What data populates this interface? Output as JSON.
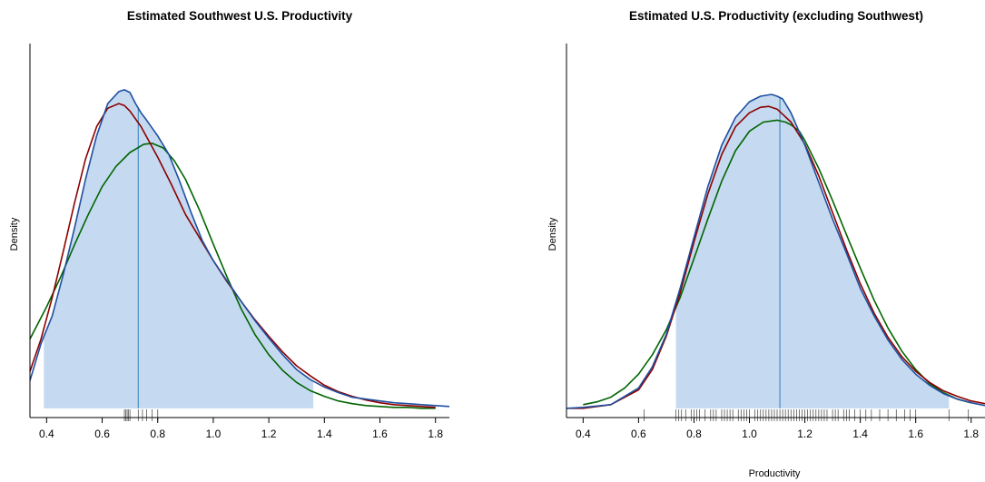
{
  "chart_data": [
    {
      "type": "area",
      "title": "Estimated Southwest U.S. Productivity",
      "xlabel": "",
      "ylabel": "Density",
      "xlim": [
        0.34,
        1.85
      ],
      "ylim": [
        -0.1,
        3.95
      ],
      "xticks": [
        "0.4",
        "0.6",
        "0.8",
        "1.0",
        "1.2",
        "1.4",
        "1.6",
        "1.8"
      ],
      "shaded_interval": [
        0.39,
        1.36
      ],
      "median_line_x": 0.73,
      "colors": {
        "fill": "#c5daf0",
        "kde": "#1f4fa0",
        "red": "#8b0000",
        "green": "#006400",
        "median": "#4a90c8"
      },
      "series": [
        {
          "x": [
            0.34,
            0.38,
            0.42,
            0.46,
            0.5,
            0.54,
            0.58,
            0.62,
            0.66,
            0.68,
            0.7,
            0.72,
            0.74,
            0.76,
            0.8,
            0.84,
            0.88,
            0.92,
            0.96,
            1.0,
            1.05,
            1.1,
            1.15,
            1.2,
            1.25,
            1.3,
            1.35,
            1.4,
            1.45,
            1.5,
            1.55,
            1.6,
            1.65,
            1.7,
            1.75,
            1.8,
            1.85
          ],
          "y": [
            0.3,
            0.7,
            1.0,
            1.45,
            1.95,
            2.48,
            2.95,
            3.3,
            3.43,
            3.45,
            3.42,
            3.3,
            3.2,
            3.12,
            2.95,
            2.75,
            2.45,
            2.12,
            1.82,
            1.6,
            1.38,
            1.16,
            0.95,
            0.76,
            0.58,
            0.42,
            0.31,
            0.23,
            0.17,
            0.12,
            0.1,
            0.08,
            0.06,
            0.05,
            0.04,
            0.03,
            0.02
          ]
        },
        {
          "x": [
            0.34,
            0.38,
            0.42,
            0.46,
            0.5,
            0.54,
            0.58,
            0.62,
            0.66,
            0.68,
            0.7,
            0.74,
            0.8,
            0.85,
            0.9,
            0.95,
            1.0,
            1.05,
            1.1,
            1.15,
            1.2,
            1.25,
            1.3,
            1.35,
            1.4,
            1.45,
            1.5,
            1.55,
            1.6,
            1.65,
            1.7,
            1.75,
            1.8
          ],
          "y": [
            0.4,
            0.75,
            1.2,
            1.7,
            2.22,
            2.7,
            3.05,
            3.25,
            3.3,
            3.28,
            3.22,
            3.05,
            2.72,
            2.42,
            2.1,
            1.85,
            1.6,
            1.37,
            1.16,
            0.96,
            0.78,
            0.61,
            0.46,
            0.35,
            0.25,
            0.18,
            0.13,
            0.09,
            0.06,
            0.04,
            0.03,
            0.02,
            0.01
          ]
        },
        {
          "x": [
            0.34,
            0.4,
            0.45,
            0.5,
            0.55,
            0.6,
            0.65,
            0.7,
            0.75,
            0.78,
            0.82,
            0.86,
            0.9,
            0.95,
            1.0,
            1.05,
            1.1,
            1.15,
            1.2,
            1.25,
            1.3,
            1.35,
            1.4,
            1.45,
            1.5,
            1.55,
            1.6,
            1.65,
            1.7,
            1.75,
            1.8
          ],
          "y": [
            0.75,
            1.1,
            1.42,
            1.77,
            2.1,
            2.4,
            2.62,
            2.77,
            2.86,
            2.87,
            2.82,
            2.68,
            2.48,
            2.15,
            1.78,
            1.42,
            1.08,
            0.8,
            0.58,
            0.41,
            0.28,
            0.19,
            0.13,
            0.08,
            0.05,
            0.03,
            0.02,
            0.01,
            0.01,
            0.0,
            0.0
          ]
        }
      ],
      "series_colors": [
        "#1f4fa0",
        "#8b0000",
        "#006400"
      ],
      "rug": [
        0.68,
        0.685,
        0.69,
        0.695,
        0.7,
        0.73,
        0.745,
        0.76,
        0.78,
        0.8
      ]
    },
    {
      "type": "area",
      "title": "Estimated U.S. Productivity (excluding Southwest)",
      "xlabel": "Productivity",
      "ylabel": "Density",
      "xlim": [
        0.34,
        1.85
      ],
      "ylim": [
        -0.1,
        3.95
      ],
      "xticks": [
        "0.4",
        "0.6",
        "0.8",
        "1.0",
        "1.2",
        "1.4",
        "1.6",
        "1.8"
      ],
      "shaded_interval": [
        0.735,
        1.72
      ],
      "median_line_x": 1.11,
      "colors": {
        "fill": "#c5daf0",
        "kde": "#1f4fa0",
        "red": "#8b0000",
        "green": "#006400",
        "median": "#4a90c8"
      },
      "series": [
        {
          "x": [
            0.34,
            0.4,
            0.5,
            0.6,
            0.65,
            0.7,
            0.75,
            0.8,
            0.85,
            0.9,
            0.95,
            1.0,
            1.04,
            1.08,
            1.1,
            1.12,
            1.15,
            1.2,
            1.25,
            1.3,
            1.35,
            1.4,
            1.45,
            1.5,
            1.55,
            1.6,
            1.65,
            1.7,
            1.75,
            1.8,
            1.85
          ],
          "y": [
            0.0,
            0.01,
            0.04,
            0.22,
            0.45,
            0.8,
            1.3,
            1.85,
            2.4,
            2.85,
            3.15,
            3.32,
            3.38,
            3.4,
            3.38,
            3.35,
            3.2,
            2.85,
            2.45,
            2.05,
            1.68,
            1.3,
            1.0,
            0.74,
            0.53,
            0.37,
            0.25,
            0.16,
            0.1,
            0.06,
            0.03
          ]
        },
        {
          "x": [
            0.34,
            0.4,
            0.5,
            0.6,
            0.65,
            0.7,
            0.75,
            0.8,
            0.85,
            0.9,
            0.95,
            1.0,
            1.04,
            1.07,
            1.1,
            1.15,
            1.2,
            1.25,
            1.3,
            1.35,
            1.4,
            1.45,
            1.5,
            1.55,
            1.6,
            1.65,
            1.7,
            1.75,
            1.8,
            1.85
          ],
          "y": [
            0.0,
            0.0,
            0.04,
            0.2,
            0.42,
            0.78,
            1.25,
            1.8,
            2.32,
            2.75,
            3.05,
            3.2,
            3.26,
            3.27,
            3.24,
            3.1,
            2.86,
            2.52,
            2.12,
            1.72,
            1.35,
            1.03,
            0.77,
            0.56,
            0.4,
            0.28,
            0.19,
            0.13,
            0.08,
            0.05
          ]
        },
        {
          "x": [
            0.4,
            0.45,
            0.5,
            0.55,
            0.6,
            0.65,
            0.7,
            0.75,
            0.8,
            0.85,
            0.9,
            0.95,
            1.0,
            1.05,
            1.1,
            1.13,
            1.15,
            1.18,
            1.2,
            1.25,
            1.3,
            1.35,
            1.4,
            1.45,
            1.5,
            1.55,
            1.6,
            1.65,
            1.7,
            1.75,
            1.8
          ],
          "y": [
            0.04,
            0.07,
            0.12,
            0.22,
            0.37,
            0.58,
            0.85,
            1.2,
            1.62,
            2.05,
            2.46,
            2.79,
            3.0,
            3.1,
            3.12,
            3.1,
            3.07,
            3.0,
            2.9,
            2.6,
            2.25,
            1.88,
            1.52,
            1.17,
            0.87,
            0.62,
            0.42,
            0.27,
            0.17,
            0.1,
            0.06
          ]
        }
      ],
      "series_colors": [
        "#1f4fa0",
        "#8b0000",
        "#006400"
      ],
      "rug": [
        0.62,
        0.735,
        0.745,
        0.755,
        0.77,
        0.79,
        0.8,
        0.81,
        0.82,
        0.84,
        0.86,
        0.87,
        0.88,
        0.9,
        0.91,
        0.92,
        0.93,
        0.94,
        0.96,
        0.97,
        0.98,
        0.99,
        1.0,
        1.02,
        1.03,
        1.04,
        1.05,
        1.06,
        1.07,
        1.08,
        1.09,
        1.1,
        1.11,
        1.12,
        1.13,
        1.14,
        1.15,
        1.16,
        1.17,
        1.18,
        1.19,
        1.2,
        1.21,
        1.22,
        1.23,
        1.24,
        1.25,
        1.26,
        1.27,
        1.28,
        1.3,
        1.31,
        1.32,
        1.34,
        1.35,
        1.36,
        1.38,
        1.4,
        1.42,
        1.44,
        1.47,
        1.5,
        1.53,
        1.56,
        1.58,
        1.6,
        1.72,
        1.79
      ]
    }
  ]
}
